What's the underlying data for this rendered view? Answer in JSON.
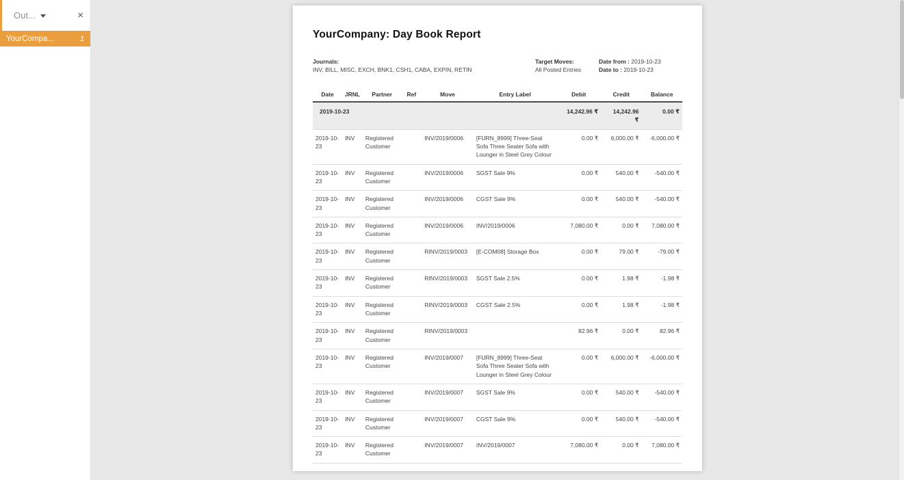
{
  "sidebar": {
    "dropdown_label": "Out...",
    "close_icon": "×",
    "selected_item": {
      "label": "YourCompa...",
      "count": "1"
    }
  },
  "report": {
    "title": "YourCompany: Day Book Report",
    "journals_label": "Journals:",
    "journals_value": "INV, BILL, MISC, EXCH, BNK1, CSH1, CABA, EXPIN, RETIN",
    "target_moves_label": "Target Moves:",
    "target_moves_value": "All Posted Entries",
    "date_from_label": "Date from :",
    "date_from_value": "2019-10-23",
    "date_to_label": "Date to :",
    "date_to_value": "2019-10-23",
    "table": {
      "columns": [
        "Date",
        "JRNL",
        "Partner",
        "Ref",
        "Move",
        "Entry Label",
        "Debit",
        "Credit",
        "Balance"
      ],
      "group_row": {
        "date": "2019-10-23",
        "debit": "14,242.96 ₹",
        "credit": "14,242.96 ₹",
        "balance": "0.00 ₹"
      },
      "rows": [
        {
          "date": "2019-10-23",
          "jrnl": "INV",
          "partner": "Registered Customer",
          "ref": "",
          "move": "INV/2019/0006",
          "label": "[FURN_8999] Three-Seat Sofa Three Seater Sofa with Lounger in Steel Grey Colour",
          "debit": "0.00 ₹",
          "credit": "6,000.00 ₹",
          "balance": "-6,000.00 ₹"
        },
        {
          "date": "2019-10-23",
          "jrnl": "INV",
          "partner": "Registered Customer",
          "ref": "",
          "move": "INV/2019/0006",
          "label": "SGST Sale 9%",
          "debit": "0.00 ₹",
          "credit": "540.00 ₹",
          "balance": "-540.00 ₹"
        },
        {
          "date": "2019-10-23",
          "jrnl": "INV",
          "partner": "Registered Customer",
          "ref": "",
          "move": "INV/2019/0006",
          "label": "CGST Sale 9%",
          "debit": "0.00 ₹",
          "credit": "540.00 ₹",
          "balance": "-540.00 ₹"
        },
        {
          "date": "2019-10-23",
          "jrnl": "INV",
          "partner": "Registered Customer",
          "ref": "",
          "move": "INV/2019/0006",
          "label": "INV/2019/0006",
          "debit": "7,080.00 ₹",
          "credit": "0.00 ₹",
          "balance": "7,080.00 ₹"
        },
        {
          "date": "2019-10-23",
          "jrnl": "INV",
          "partner": "Registered Customer",
          "ref": "",
          "move": "RINV/2019/0003",
          "label": "[E-COM08] Storage Box",
          "debit": "0.00 ₹",
          "credit": "79.00 ₹",
          "balance": "-79.00 ₹"
        },
        {
          "date": "2019-10-23",
          "jrnl": "INV",
          "partner": "Registered Customer",
          "ref": "",
          "move": "RINV/2019/0003",
          "label": "SGST Sale 2.5%",
          "debit": "0.00 ₹",
          "credit": "1.98 ₹",
          "balance": "-1.98 ₹"
        },
        {
          "date": "2019-10-23",
          "jrnl": "INV",
          "partner": "Registered Customer",
          "ref": "",
          "move": "RINV/2019/0003",
          "label": "CGST Sale 2.5%",
          "debit": "0.00 ₹",
          "credit": "1.98 ₹",
          "balance": "-1.98 ₹"
        },
        {
          "date": "2019-10-23",
          "jrnl": "INV",
          "partner": "Registered Customer",
          "ref": "",
          "move": "RINV/2019/0003",
          "label": "",
          "debit": "82.96 ₹",
          "credit": "0.00 ₹",
          "balance": "82.96 ₹"
        },
        {
          "date": "2019-10-23",
          "jrnl": "INV",
          "partner": "Registered Customer",
          "ref": "",
          "move": "INV/2019/0007",
          "label": "[FURN_8999] Three-Seat Sofa Three Seater Sofa with Lounger in Steel Grey Colour",
          "debit": "0.00 ₹",
          "credit": "6,000.00 ₹",
          "balance": "-6,000.00 ₹"
        },
        {
          "date": "2019-10-23",
          "jrnl": "INV",
          "partner": "Registered Customer",
          "ref": "",
          "move": "INV/2019/0007",
          "label": "SGST Sale 9%",
          "debit": "0.00 ₹",
          "credit": "540.00 ₹",
          "balance": "-540.00 ₹"
        },
        {
          "date": "2019-10-23",
          "jrnl": "INV",
          "partner": "Registered Customer",
          "ref": "",
          "move": "INV/2019/0007",
          "label": "CGST Sale 9%",
          "debit": "0.00 ₹",
          "credit": "540.00 ₹",
          "balance": "-540.00 ₹"
        },
        {
          "date": "2019-10-23",
          "jrnl": "INV",
          "partner": "Registered Customer",
          "ref": "",
          "move": "INV/2019/0007",
          "label": "INV/2019/0007",
          "debit": "7,080.00 ₹",
          "credit": "0.00 ₹",
          "balance": "7,080.00 ₹"
        }
      ]
    }
  },
  "colors": {
    "accent": "#EA9E3E",
    "canvas_bg": "#E8E8E8",
    "group_row_bg": "#ECECEC"
  }
}
